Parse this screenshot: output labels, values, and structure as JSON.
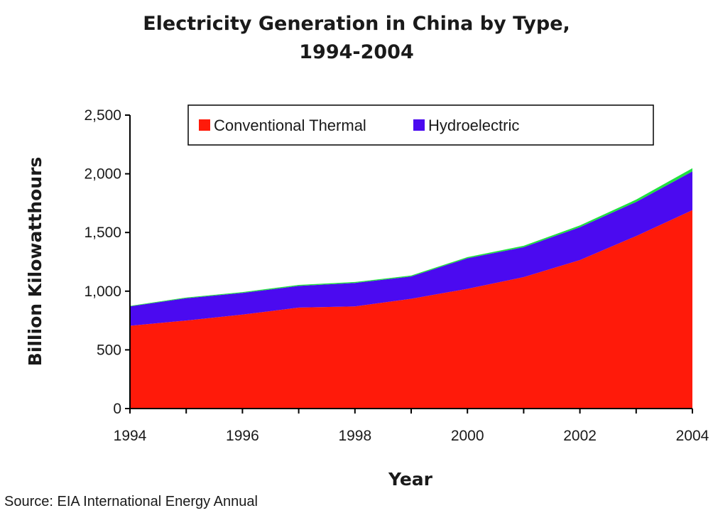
{
  "chart_data": {
    "type": "area",
    "stacked": true,
    "title": "Electricity Generation in China by Type,",
    "subtitle": "1994-2004",
    "xlabel": "Year",
    "ylabel": "Billion Kilowatthours",
    "x": [
      1994,
      1995,
      1996,
      1997,
      1998,
      1999,
      2000,
      2001,
      2002,
      2003,
      2004
    ],
    "xticks": [
      "1994",
      "1996",
      "1998",
      "2000",
      "2002",
      "2004"
    ],
    "yticks": [
      "0",
      "500",
      "1,000",
      "1,500",
      "2,000",
      "2,500"
    ],
    "ylim": [
      0,
      2500
    ],
    "xlim": [
      1994,
      2004
    ],
    "grid": false,
    "legend_position": "top",
    "series": [
      {
        "name": "Conventional Thermal",
        "color": "#ff1a0a",
        "values": [
          705,
          750,
          800,
          860,
          870,
          935,
          1020,
          1120,
          1265,
          1470,
          1690
        ]
      },
      {
        "name": "Hydroelectric",
        "color": "#4b0af0",
        "values": [
          165,
          190,
          185,
          185,
          200,
          190,
          260,
          255,
          280,
          290,
          330
        ]
      },
      {
        "color": "#22e040",
        "values": [
          5,
          6,
          7,
          8,
          8,
          9,
          10,
          12,
          15,
          20,
          28
        ]
      }
    ],
    "source": "Source: EIA International Energy Annual"
  }
}
